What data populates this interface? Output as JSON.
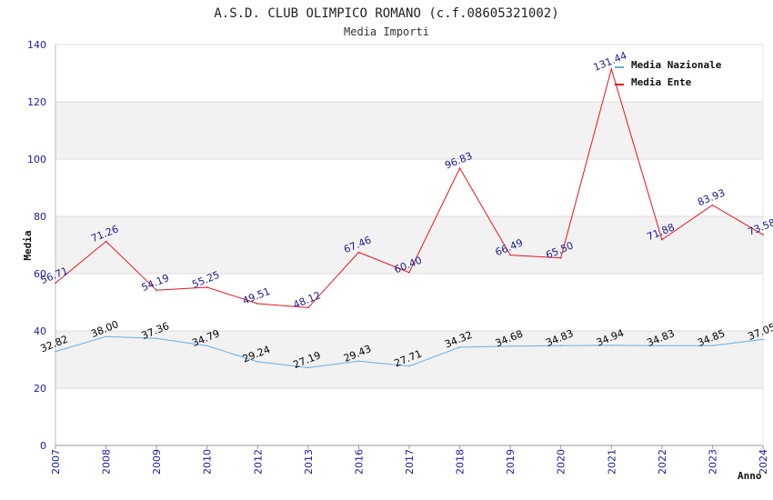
{
  "header": {
    "title": "A.S.D. CLUB OLIMPICO ROMANO (c.f.08605321002)",
    "subtitle": "Media Importi"
  },
  "chart_data": {
    "type": "line",
    "title": "A.S.D. CLUB OLIMPICO ROMANO (c.f.08605321002)",
    "subtitle": "Media Importi",
    "xlabel": "Anno",
    "ylabel": "Media",
    "ylim": [
      0,
      140
    ],
    "yticks": [
      0,
      20,
      40,
      60,
      80,
      100,
      120,
      140
    ],
    "grid": "horizontal bands",
    "legend_position": "top-right",
    "categories": [
      "2007",
      "2008",
      "2009",
      "2010",
      "2012",
      "2013",
      "2016",
      "2017",
      "2018",
      "2019",
      "2020",
      "2021",
      "2022",
      "2023",
      "2024"
    ],
    "series": [
      {
        "name": "Media Nazionale",
        "color": "#6aaee6",
        "label_color": "#000000",
        "values": [
          32.82,
          38.0,
          37.36,
          34.79,
          29.24,
          27.19,
          29.43,
          27.71,
          34.32,
          34.68,
          34.83,
          34.94,
          34.83,
          34.85,
          37.05
        ]
      },
      {
        "name": "Media Ente",
        "color": "#e8141e",
        "label_color": "#1a1a8c",
        "values": [
          56.71,
          71.26,
          54.19,
          55.25,
          49.51,
          48.12,
          67.46,
          60.4,
          96.83,
          66.49,
          65.5,
          131.44,
          71.88,
          83.93,
          73.58
        ]
      }
    ]
  }
}
